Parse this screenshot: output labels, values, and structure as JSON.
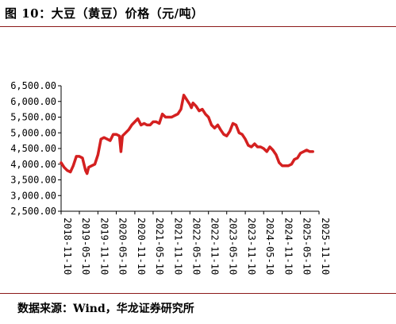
{
  "title": "图 10：大豆（黄豆）价格（元/吨）",
  "source": "数据来源：Wind，华龙证券研究所",
  "chart_data": {
    "type": "line",
    "title": "图 10：大豆（黄豆）价格（元/吨）",
    "xlabel": "",
    "ylabel": "",
    "ylim": [
      2500,
      6500
    ],
    "yticks": [
      2500,
      3000,
      3500,
      4000,
      4500,
      5000,
      5500,
      6000,
      6500
    ],
    "ytick_labels": [
      "2,500.00",
      "3,000.00",
      "3,500.00",
      "4,000.00",
      "4,500.00",
      "5,000.00",
      "5,500.00",
      "6,000.00",
      "6,500.00"
    ],
    "xlim": [
      "2018-11-10",
      "2025-11-10"
    ],
    "xtick_labels": [
      "2018-11-10",
      "2019-05-10",
      "2019-11-10",
      "2020-05-10",
      "2020-11-10",
      "2021-05-10",
      "2021-11-10",
      "2022-05-10",
      "2022-11-10",
      "2023-05-10",
      "2023-11-10",
      "2024-05-10",
      "2024-11-10",
      "2025-05-10",
      "2025-11-10"
    ],
    "grid": false,
    "legend": "none",
    "line_color": "#d42020",
    "series": [
      {
        "x": [
          "2018-11-10",
          "2018-12-10",
          "2019-01-10",
          "2019-02-10",
          "2019-03-10",
          "2019-04-10",
          "2019-05-10",
          "2019-06-10",
          "2019-07-10",
          "2019-07-25",
          "2019-08-10",
          "2019-09-10",
          "2019-10-10",
          "2019-11-10",
          "2019-12-10",
          "2020-01-10",
          "2020-02-10",
          "2020-03-10",
          "2020-04-10",
          "2020-05-10",
          "2020-06-10",
          "2020-06-25",
          "2020-07-10",
          "2020-08-10",
          "2020-09-10",
          "2020-10-10",
          "2020-11-10",
          "2020-12-10",
          "2021-01-10",
          "2021-02-10",
          "2021-03-10",
          "2021-04-10",
          "2021-05-10",
          "2021-06-10",
          "2021-07-10",
          "2021-08-10",
          "2021-09-10",
          "2021-10-10",
          "2021-11-10",
          "2021-12-10",
          "2022-01-10",
          "2022-02-10",
          "2022-03-10",
          "2022-04-10",
          "2022-05-10",
          "2022-05-25",
          "2022-06-10",
          "2022-07-10",
          "2022-08-10",
          "2022-09-10",
          "2022-10-10",
          "2022-11-10",
          "2022-12-10",
          "2023-01-10",
          "2023-02-10",
          "2023-03-10",
          "2023-04-10",
          "2023-05-10",
          "2023-06-10",
          "2023-07-10",
          "2023-08-10",
          "2023-09-10",
          "2023-10-10",
          "2023-11-10",
          "2023-12-10",
          "2024-01-10",
          "2024-02-10",
          "2024-03-10",
          "2024-04-10",
          "2024-05-10",
          "2024-06-10",
          "2024-07-10",
          "2024-08-10",
          "2024-09-10",
          "2024-10-10",
          "2024-11-10",
          "2024-12-10",
          "2025-01-10",
          "2025-02-10",
          "2025-03-10",
          "2025-04-10",
          "2025-05-10",
          "2025-06-10",
          "2025-07-10",
          "2025-08-10",
          "2025-09-10"
        ],
        "y": [
          4050,
          3900,
          3800,
          3750,
          3950,
          4250,
          4250,
          4200,
          3800,
          3700,
          3900,
          3950,
          4000,
          4300,
          4800,
          4850,
          4800,
          4750,
          4950,
          4950,
          4900,
          4400,
          4900,
          5000,
          5100,
          5250,
          5350,
          5450,
          5250,
          5300,
          5250,
          5250,
          5350,
          5350,
          5300,
          5600,
          5500,
          5500,
          5500,
          5550,
          5600,
          5750,
          6200,
          6050,
          5900,
          5800,
          5950,
          5850,
          5700,
          5750,
          5600,
          5500,
          5250,
          5150,
          5250,
          5100,
          4950,
          4900,
          5050,
          5300,
          5250,
          5000,
          4950,
          4800,
          4600,
          4550,
          4650,
          4550,
          4550,
          4500,
          4400,
          4550,
          4450,
          4300,
          4050,
          3950,
          3950,
          3950,
          4000,
          4150,
          4200,
          4350,
          4400,
          4450,
          4400,
          4400
        ]
      }
    ]
  }
}
